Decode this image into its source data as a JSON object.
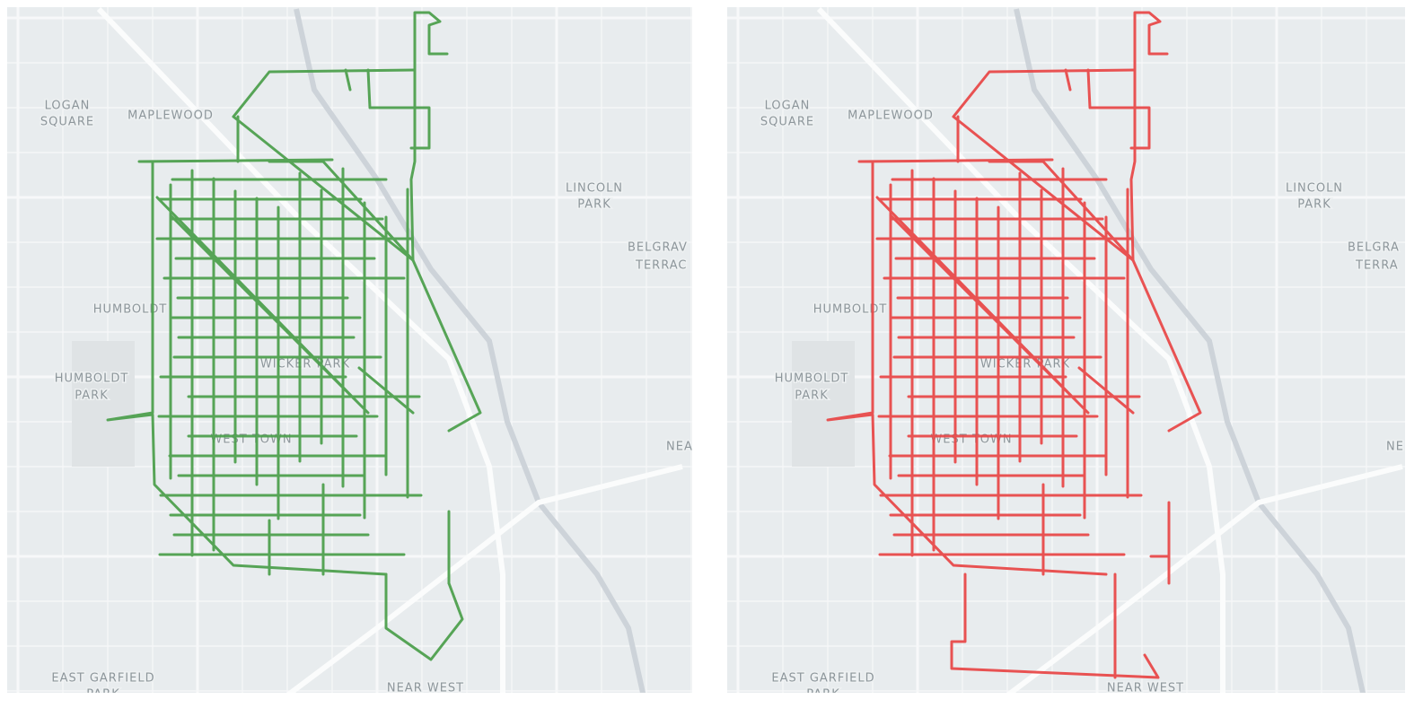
{
  "panels": [
    {
      "route_color": "#4a9e4a",
      "labels": [
        "LOGAN",
        "SQUARE",
        "MAPLEWOOD",
        "LINCOLN",
        "PARK",
        "BELGRAV",
        "TERRAC",
        "HUMBOLDT",
        "HUMBOLDT",
        "PARK",
        "WICKER PARK",
        "WEST TOWN",
        "NEA",
        "EAST GARFIELD",
        "PARK",
        "NEAR WEST"
      ]
    },
    {
      "route_color": "#e84545",
      "labels": [
        "LOGAN",
        "SQUARE",
        "MAPLEWOOD",
        "LINCOLN",
        "PARK",
        "BELGRA",
        "TERRA",
        "HUMBOLDT",
        "HUMBOLDT",
        "PARK",
        "WICKER PARK",
        "WEST TOWN",
        "NE",
        "EAST GARFIELD",
        "PARK",
        "NEAR WEST"
      ]
    }
  ]
}
